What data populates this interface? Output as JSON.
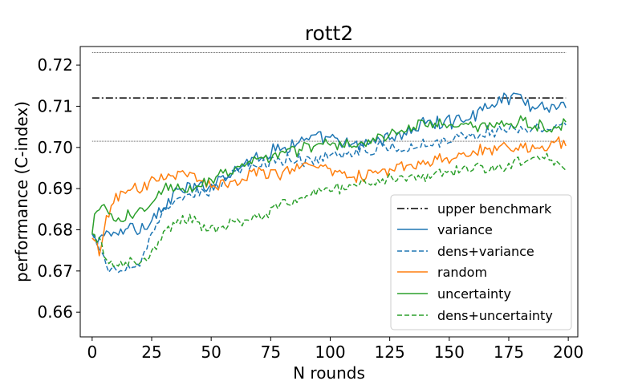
{
  "chart_data": {
    "type": "line",
    "title": "rott2",
    "xlabel": "N rounds",
    "ylabel": "performance (C-index)",
    "xlim": [
      -5,
      204
    ],
    "ylim": [
      0.654,
      0.7245
    ],
    "xticks": [
      0,
      25,
      50,
      75,
      100,
      125,
      150,
      175,
      200
    ],
    "yticks": [
      0.66,
      0.67,
      0.68,
      0.69,
      0.7,
      0.71,
      0.72
    ],
    "ytick_labels": [
      "0.66",
      "0.67",
      "0.68",
      "0.69",
      "0.70",
      "0.71",
      "0.72"
    ],
    "grid": false,
    "legend_position": "lower-right",
    "reference_lines": [
      {
        "name": "upper benchmark",
        "y": 0.712,
        "x_range": [
          0,
          199
        ],
        "color": "#000000",
        "style": "dashdot",
        "in_legend": true
      },
      {
        "y": 0.723,
        "x_range": [
          0,
          199
        ],
        "color": "#000000",
        "style": "dotted",
        "in_legend": false
      },
      {
        "y": 0.7015,
        "x_range": [
          0,
          199
        ],
        "color": "#000000",
        "style": "dotted",
        "in_legend": false
      }
    ],
    "series": [
      {
        "name": "variance",
        "color": "#1f77b4",
        "style": "solid",
        "anchors": [
          [
            0,
            0.679
          ],
          [
            2,
            0.676
          ],
          [
            5,
            0.68
          ],
          [
            10,
            0.678
          ],
          [
            15,
            0.681
          ],
          [
            20,
            0.68
          ],
          [
            25,
            0.683
          ],
          [
            30,
            0.685
          ],
          [
            35,
            0.689
          ],
          [
            40,
            0.69
          ],
          [
            45,
            0.69
          ],
          [
            50,
            0.691
          ],
          [
            60,
            0.695
          ],
          [
            70,
            0.698
          ],
          [
            80,
            0.7
          ],
          [
            90,
            0.702
          ],
          [
            100,
            0.702
          ],
          [
            110,
            0.7
          ],
          [
            120,
            0.702
          ],
          [
            130,
            0.703
          ],
          [
            140,
            0.706
          ],
          [
            150,
            0.706
          ],
          [
            160,
            0.708
          ],
          [
            170,
            0.711
          ],
          [
            178,
            0.713
          ],
          [
            185,
            0.71
          ],
          [
            195,
            0.71
          ],
          [
            199,
            0.711
          ]
        ],
        "noise": 0.0014
      },
      {
        "name": "dens+variance",
        "color": "#1f77b4",
        "style": "dashed",
        "anchors": [
          [
            0,
            0.679
          ],
          [
            3,
            0.675
          ],
          [
            6,
            0.671
          ],
          [
            10,
            0.67
          ],
          [
            15,
            0.671
          ],
          [
            20,
            0.672
          ],
          [
            25,
            0.678
          ],
          [
            30,
            0.684
          ],
          [
            35,
            0.687
          ],
          [
            40,
            0.688
          ],
          [
            50,
            0.69
          ],
          [
            60,
            0.694
          ],
          [
            70,
            0.696
          ],
          [
            80,
            0.697
          ],
          [
            90,
            0.697
          ],
          [
            100,
            0.698
          ],
          [
            110,
            0.699
          ],
          [
            120,
            0.7
          ],
          [
            130,
            0.7
          ],
          [
            140,
            0.701
          ],
          [
            150,
            0.702
          ],
          [
            160,
            0.703
          ],
          [
            170,
            0.704
          ],
          [
            180,
            0.705
          ],
          [
            190,
            0.705
          ],
          [
            199,
            0.705
          ]
        ],
        "noise": 0.0012
      },
      {
        "name": "random",
        "color": "#ff7f0e",
        "style": "solid",
        "anchors": [
          [
            0,
            0.678
          ],
          [
            3,
            0.674
          ],
          [
            6,
            0.683
          ],
          [
            10,
            0.688
          ],
          [
            15,
            0.689
          ],
          [
            20,
            0.69
          ],
          [
            25,
            0.692
          ],
          [
            30,
            0.693
          ],
          [
            35,
            0.694
          ],
          [
            40,
            0.693
          ],
          [
            50,
            0.691
          ],
          [
            60,
            0.692
          ],
          [
            70,
            0.694
          ],
          [
            80,
            0.694
          ],
          [
            90,
            0.696
          ],
          [
            100,
            0.695
          ],
          [
            110,
            0.693
          ],
          [
            120,
            0.694
          ],
          [
            130,
            0.695
          ],
          [
            140,
            0.696
          ],
          [
            150,
            0.697
          ],
          [
            160,
            0.699
          ],
          [
            170,
            0.7
          ],
          [
            180,
            0.7
          ],
          [
            190,
            0.7
          ],
          [
            199,
            0.702
          ]
        ],
        "noise": 0.0013
      },
      {
        "name": "uncertainty",
        "color": "#2ca02c",
        "style": "solid",
        "anchors": [
          [
            0,
            0.679
          ],
          [
            2,
            0.686
          ],
          [
            5,
            0.685
          ],
          [
            10,
            0.682
          ],
          [
            15,
            0.683
          ],
          [
            20,
            0.684
          ],
          [
            25,
            0.686
          ],
          [
            30,
            0.69
          ],
          [
            35,
            0.691
          ],
          [
            40,
            0.69
          ],
          [
            50,
            0.692
          ],
          [
            60,
            0.695
          ],
          [
            70,
            0.697
          ],
          [
            80,
            0.699
          ],
          [
            90,
            0.7
          ],
          [
            100,
            0.701
          ],
          [
            110,
            0.701
          ],
          [
            120,
            0.702
          ],
          [
            130,
            0.704
          ],
          [
            140,
            0.706
          ],
          [
            150,
            0.705
          ],
          [
            160,
            0.705
          ],
          [
            170,
            0.705
          ],
          [
            180,
            0.706
          ],
          [
            190,
            0.705
          ],
          [
            199,
            0.706
          ]
        ],
        "noise": 0.0013
      },
      {
        "name": "dens+uncertainty",
        "color": "#2ca02c",
        "style": "dashed",
        "anchors": [
          [
            0,
            0.679
          ],
          [
            3,
            0.677
          ],
          [
            6,
            0.672
          ],
          [
            10,
            0.671
          ],
          [
            15,
            0.672
          ],
          [
            20,
            0.672
          ],
          [
            25,
            0.675
          ],
          [
            30,
            0.679
          ],
          [
            35,
            0.682
          ],
          [
            40,
            0.683
          ],
          [
            50,
            0.68
          ],
          [
            60,
            0.682
          ],
          [
            70,
            0.683
          ],
          [
            80,
            0.686
          ],
          [
            90,
            0.688
          ],
          [
            100,
            0.69
          ],
          [
            110,
            0.691
          ],
          [
            120,
            0.692
          ],
          [
            130,
            0.693
          ],
          [
            140,
            0.693
          ],
          [
            150,
            0.694
          ],
          [
            160,
            0.695
          ],
          [
            170,
            0.695
          ],
          [
            180,
            0.697
          ],
          [
            190,
            0.698
          ],
          [
            199,
            0.695
          ]
        ],
        "noise": 0.0012
      }
    ]
  }
}
